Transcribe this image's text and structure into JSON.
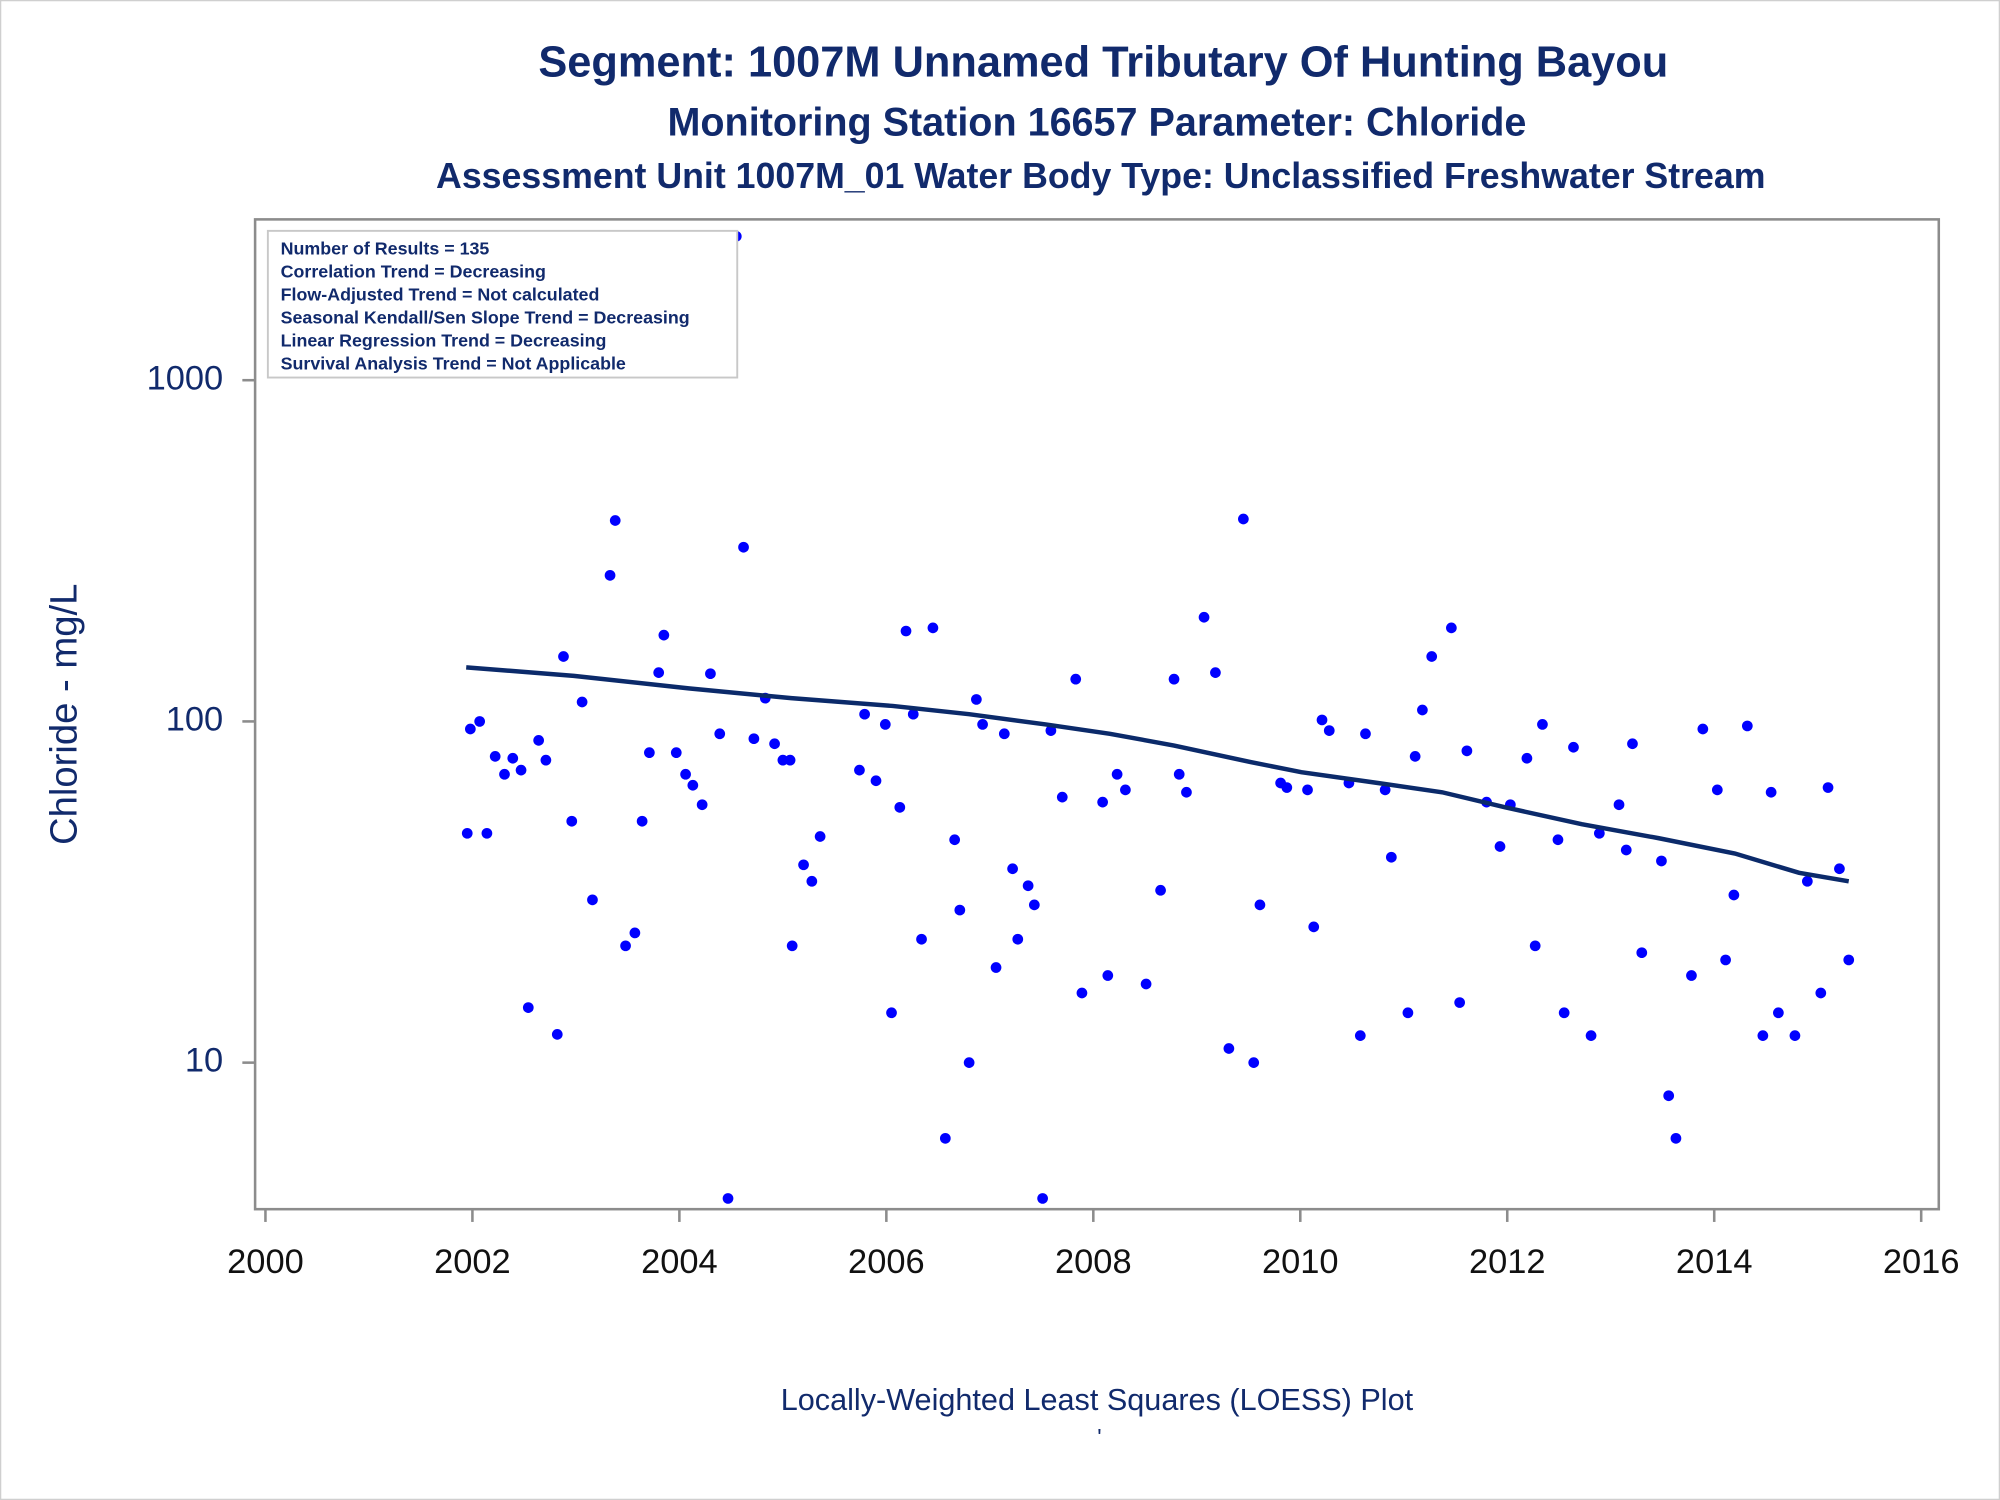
{
  "chart_data": {
    "type": "scatter",
    "title": "Segment: 1007M  Unnamed Tributary Of Hunting Bayou",
    "subtitle": "Monitoring Station 16657 Parameter: Chloride",
    "subtitle2": "Assessment Unit 1007M_01   Water Body Type: Unclassified Freshwater Stream",
    "y_label": "Chloride - mg/L",
    "footnote": "Locally-Weighted Least Squares (LOESS) Plot",
    "footnote2": "'",
    "stats": [
      "Number of Results = 135",
      "Correlation Trend = Decreasing",
      "Flow-Adjusted Trend = Not calculated",
      "Seasonal Kendall/Sen Slope Trend = Decreasing",
      "Linear Regression Trend = Decreasing",
      "Survival Analysis Trend = Not Applicable"
    ],
    "xlim": [
      1999.9,
      2016.17
    ],
    "xticks": [
      2000,
      2002,
      2004,
      2006,
      2008,
      2010,
      2012,
      2014,
      2016
    ],
    "ylim": [
      3.72,
      2960
    ],
    "yticks": [
      10,
      100,
      1000
    ],
    "y_scale": "log",
    "grid": false,
    "series": [
      {
        "mode": "scatter",
        "color": "#0000ff",
        "x": [
          2001.95,
          2001.98,
          2002.07,
          2002.14,
          2002.22,
          2002.31,
          2002.39,
          2002.47,
          2002.54,
          2002.64,
          2002.71,
          2002.82,
          2002.88,
          2002.96,
          2003.06,
          2003.16,
          2003.33,
          2003.38,
          2003.48,
          2003.57,
          2003.64,
          2003.71,
          2003.8,
          2003.85,
          2003.97,
          2004.06,
          2004.13,
          2004.22,
          2004.3,
          2004.39,
          2004.47,
          2004.55,
          2004.62,
          2004.72,
          2004.83,
          2004.92,
          2005.0,
          2005.07,
          2005.09,
          2005.2,
          2005.28,
          2005.36,
          2005.74,
          2005.79,
          2005.9,
          2005.99,
          2006.05,
          2006.13,
          2006.19,
          2006.26,
          2006.34,
          2006.45,
          2006.57,
          2006.66,
          2006.71,
          2006.8,
          2006.87,
          2006.93,
          2007.06,
          2007.14,
          2007.22,
          2007.27,
          2007.37,
          2007.43,
          2007.51,
          2007.59,
          2007.7,
          2007.83,
          2007.89,
          2008.09,
          2008.14,
          2008.23,
          2008.31,
          2008.51,
          2008.65,
          2008.78,
          2008.83,
          2008.9,
          2009.07,
          2009.18,
          2009.31,
          2009.45,
          2009.55,
          2009.61,
          2009.81,
          2009.87,
          2010.07,
          2010.13,
          2010.21,
          2010.28,
          2010.47,
          2010.58,
          2010.63,
          2010.82,
          2010.88,
          2011.04,
          2011.11,
          2011.18,
          2011.27,
          2011.46,
          2011.54,
          2011.61,
          2011.8,
          2011.93,
          2012.03,
          2012.19,
          2012.27,
          2012.34,
          2012.49,
          2012.55,
          2012.64,
          2012.81,
          2012.89,
          2013.08,
          2013.15,
          2013.21,
          2013.3,
          2013.49,
          2013.56,
          2013.63,
          2013.78,
          2013.89,
          2014.03,
          2014.11,
          2014.19,
          2014.32,
          2014.47,
          2014.55,
          2014.62,
          2014.78,
          2014.9,
          2015.03,
          2015.1,
          2015.21,
          2015.3
        ],
        "values": [
          47,
          95,
          100,
          47,
          79,
          70,
          78,
          72,
          14.5,
          88,
          77,
          12.1,
          155,
          51,
          114,
          30,
          268,
          388,
          22,
          24,
          51,
          81,
          139,
          179,
          81,
          70,
          65,
          57,
          138,
          92,
          4.0,
          2640,
          324,
          89,
          117,
          86,
          77,
          77,
          22,
          38,
          34,
          46,
          72,
          105,
          67,
          98,
          14,
          56,
          184,
          105,
          23,
          188,
          6.0,
          45,
          28,
          10,
          116,
          98,
          19,
          92,
          37,
          23,
          33,
          29,
          4.0,
          94,
          60,
          133,
          16,
          58,
          18,
          70,
          63,
          17,
          32,
          133,
          70,
          62,
          202,
          139,
          11,
          392,
          10,
          29,
          66,
          64,
          63,
          25,
          101,
          94,
          66,
          12,
          92,
          63,
          40,
          14,
          79,
          108,
          155,
          188,
          15,
          82,
          58,
          43,
          57,
          78,
          22,
          98,
          45,
          14,
          84,
          12,
          47,
          57,
          42,
          86,
          21,
          39,
          8.0,
          6.0,
          18,
          95,
          63,
          20,
          31,
          97,
          12,
          62,
          14,
          12,
          34,
          16,
          64,
          37,
          20
        ]
      },
      {
        "mode": "line",
        "color": "#0b2a6a",
        "x": [
          2001.94,
          2002.98,
          2004.09,
          2005.08,
          2006.06,
          2006.8,
          2007.54,
          2008.16,
          2008.78,
          2009.52,
          2010.01,
          2010.75,
          2011.37,
          2011.98,
          2012.72,
          2013.46,
          2014.2,
          2014.82,
          2015.3
        ],
        "values": [
          144,
          136,
          125,
          117,
          111,
          105,
          98,
          92,
          85,
          76,
          71,
          66,
          62,
          56,
          50,
          45.5,
          41,
          36,
          34
        ]
      }
    ]
  }
}
